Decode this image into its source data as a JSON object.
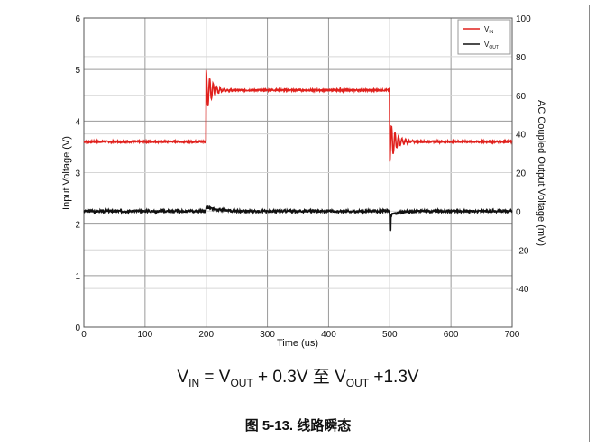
{
  "chart_data": {
    "type": "line",
    "xlabel": "Time (us)",
    "ylabel_left": "Input Voltage (V)",
    "ylabel_right": "AC Coupled Output Voltage (mV)",
    "xlim": [
      0,
      700
    ],
    "ylim_left": [
      0,
      6
    ],
    "ylim_right": [
      -60,
      100
    ],
    "x_ticks": [
      "0",
      "100",
      "200",
      "300",
      "400",
      "500",
      "600",
      "700"
    ],
    "y_left_ticks": [
      "0",
      "1",
      "2",
      "3",
      "4",
      "5",
      "6"
    ],
    "y_right_ticks": [
      "-40",
      "-20",
      "0",
      "20",
      "40",
      "60",
      "80",
      "100"
    ],
    "grid": true,
    "legend_position": "top-right",
    "series": [
      {
        "key": "vin",
        "axis": "left",
        "color": "#e0211d",
        "label_main": "V",
        "label_sub": "IN",
        "segments": [
          {
            "x_start": 0,
            "x_end": 200,
            "y": 3.6
          },
          {
            "x_start": 200,
            "x_end": 500,
            "y": 4.6
          },
          {
            "x_start": 500,
            "x_end": 700,
            "y": 3.6
          }
        ],
        "transients": [
          {
            "x": 200,
            "peak": 5.0,
            "settle": 4.6
          },
          {
            "x": 500,
            "peak": 3.2,
            "settle": 3.6
          }
        ]
      },
      {
        "key": "vout",
        "axis": "right",
        "color": "#111111",
        "label_main": "V",
        "label_sub": "OUT",
        "baseline": 0,
        "transients": [
          {
            "x": 200,
            "peak": 2
          },
          {
            "x": 500,
            "peak": -10
          }
        ]
      }
    ]
  },
  "conditions": {
    "part1": "V",
    "sub1": "IN",
    "part2": " = V",
    "sub2": "OUT",
    "part3": " + 0.3V 至 V",
    "sub3": "OUT",
    "part4": " +1.3V"
  },
  "caption": "图 5-13. 线路瞬态"
}
